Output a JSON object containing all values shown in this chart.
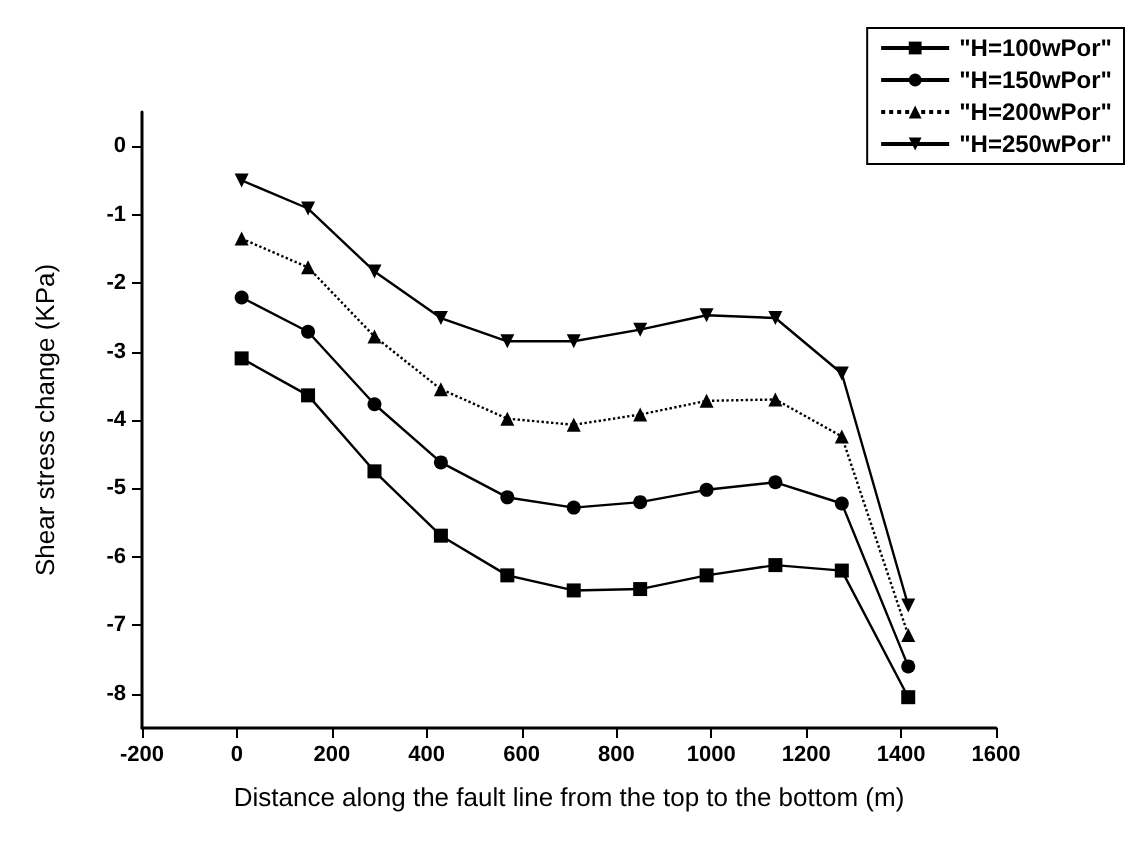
{
  "chart_data": {
    "type": "line",
    "xlabel": "Distance along the fault line from the top to the bottom (m)",
    "ylabel": "Shear stress change (KPa)",
    "x": [
      10,
      150,
      290,
      430,
      570,
      710,
      850,
      990,
      1135,
      1275,
      1415
    ],
    "xlim": [
      -200,
      1600
    ],
    "xticks": [
      -200,
      0,
      200,
      400,
      600,
      800,
      1000,
      1200,
      1400,
      1600
    ],
    "ylim": [
      -8.5,
      0.5
    ],
    "yticks": [
      -8,
      -7,
      -6,
      -5,
      -4,
      -3,
      -2,
      -1,
      0
    ],
    "grid": false,
    "legend": "top right",
    "series": [
      {
        "name": "\"H=100wPor\"",
        "color": "#000000",
        "marker": "square",
        "line_style": "solid",
        "values": [
          -3.1,
          -3.64,
          -4.75,
          -5.69,
          -6.27,
          -6.49,
          -6.47,
          -6.27,
          -6.12,
          -6.2,
          -8.05
        ]
      },
      {
        "name": "\"H=150wPor\"",
        "color": "#000000",
        "marker": "circle",
        "line_style": "solid",
        "values": [
          -2.21,
          -2.71,
          -3.77,
          -4.62,
          -5.13,
          -5.28,
          -5.2,
          -5.02,
          -4.91,
          -5.22,
          -7.6
        ]
      },
      {
        "name": "\"H=200wPor\"",
        "color": "#000000",
        "marker": "triangle",
        "line_style": "dotted",
        "values": [
          -1.35,
          -1.77,
          -2.78,
          -3.55,
          -3.98,
          -4.07,
          -3.92,
          -3.72,
          -3.7,
          -4.24,
          -7.14
        ]
      },
      {
        "name": "\"H=250wPor\"",
        "color": "#000000",
        "marker": "triangle-down",
        "line_style": "solid",
        "values": [
          -0.5,
          -0.91,
          -1.83,
          -2.51,
          -2.85,
          -2.85,
          -2.68,
          -2.47,
          -2.51,
          -3.32,
          -6.71
        ]
      }
    ]
  }
}
